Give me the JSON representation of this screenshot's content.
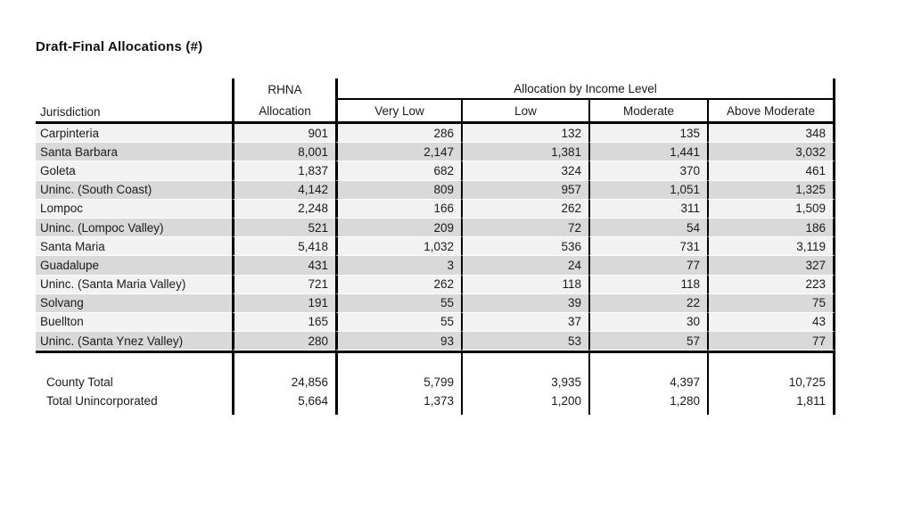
{
  "page": {
    "title": "Draft-Final Allocations (#)"
  },
  "table": {
    "headers": {
      "jurisdiction": "Jurisdiction",
      "rhna_line1": "RHNA",
      "rhna_line2": "Allocation",
      "income_group": "Allocation by Income Level",
      "income_columns": [
        "Very Low",
        "Low",
        "Moderate",
        "Above Moderate"
      ]
    },
    "rows": [
      {
        "jurisdiction": "Carpinteria",
        "rhna": "901",
        "very_low": "286",
        "low": "132",
        "moderate": "135",
        "above_moderate": "348"
      },
      {
        "jurisdiction": "Santa Barbara",
        "rhna": "8,001",
        "very_low": "2,147",
        "low": "1,381",
        "moderate": "1,441",
        "above_moderate": "3,032"
      },
      {
        "jurisdiction": "Goleta",
        "rhna": "1,837",
        "very_low": "682",
        "low": "324",
        "moderate": "370",
        "above_moderate": "461"
      },
      {
        "jurisdiction": "Uninc. (South Coast)",
        "rhna": "4,142",
        "very_low": "809",
        "low": "957",
        "moderate": "1,051",
        "above_moderate": "1,325"
      },
      {
        "jurisdiction": "Lompoc",
        "rhna": "2,248",
        "very_low": "166",
        "low": "262",
        "moderate": "311",
        "above_moderate": "1,509"
      },
      {
        "jurisdiction": "Uninc. (Lompoc Valley)",
        "rhna": "521",
        "very_low": "209",
        "low": "72",
        "moderate": "54",
        "above_moderate": "186"
      },
      {
        "jurisdiction": "Santa Maria",
        "rhna": "5,418",
        "very_low": "1,032",
        "low": "536",
        "moderate": "731",
        "above_moderate": "3,119"
      },
      {
        "jurisdiction": "Guadalupe",
        "rhna": "431",
        "very_low": "3",
        "low": "24",
        "moderate": "77",
        "above_moderate": "327"
      },
      {
        "jurisdiction": "Uninc. (Santa Maria Valley)",
        "rhna": "721",
        "very_low": "262",
        "low": "118",
        "moderate": "118",
        "above_moderate": "223"
      },
      {
        "jurisdiction": "Solvang",
        "rhna": "191",
        "very_low": "55",
        "low": "39",
        "moderate": "22",
        "above_moderate": "75"
      },
      {
        "jurisdiction": "Buellton",
        "rhna": "165",
        "very_low": "55",
        "low": "37",
        "moderate": "30",
        "above_moderate": "43"
      },
      {
        "jurisdiction": "Uninc. (Santa Ynez Valley)",
        "rhna": "280",
        "very_low": "93",
        "low": "53",
        "moderate": "57",
        "above_moderate": "77"
      }
    ],
    "totals": [
      {
        "label": "County Total",
        "rhna": "24,856",
        "very_low": "5,799",
        "low": "3,935",
        "moderate": "4,397",
        "above_moderate": "10,725"
      },
      {
        "label": "Total Unincorporated",
        "rhna": "5,664",
        "very_low": "1,373",
        "low": "1,200",
        "moderate": "1,280",
        "above_moderate": "1,811"
      }
    ]
  },
  "colors": {
    "row_light": "#f2f2f2",
    "row_dark": "#d9d9d9",
    "border": "#000000",
    "text": "#1a1a1a",
    "background": "#ffffff"
  }
}
